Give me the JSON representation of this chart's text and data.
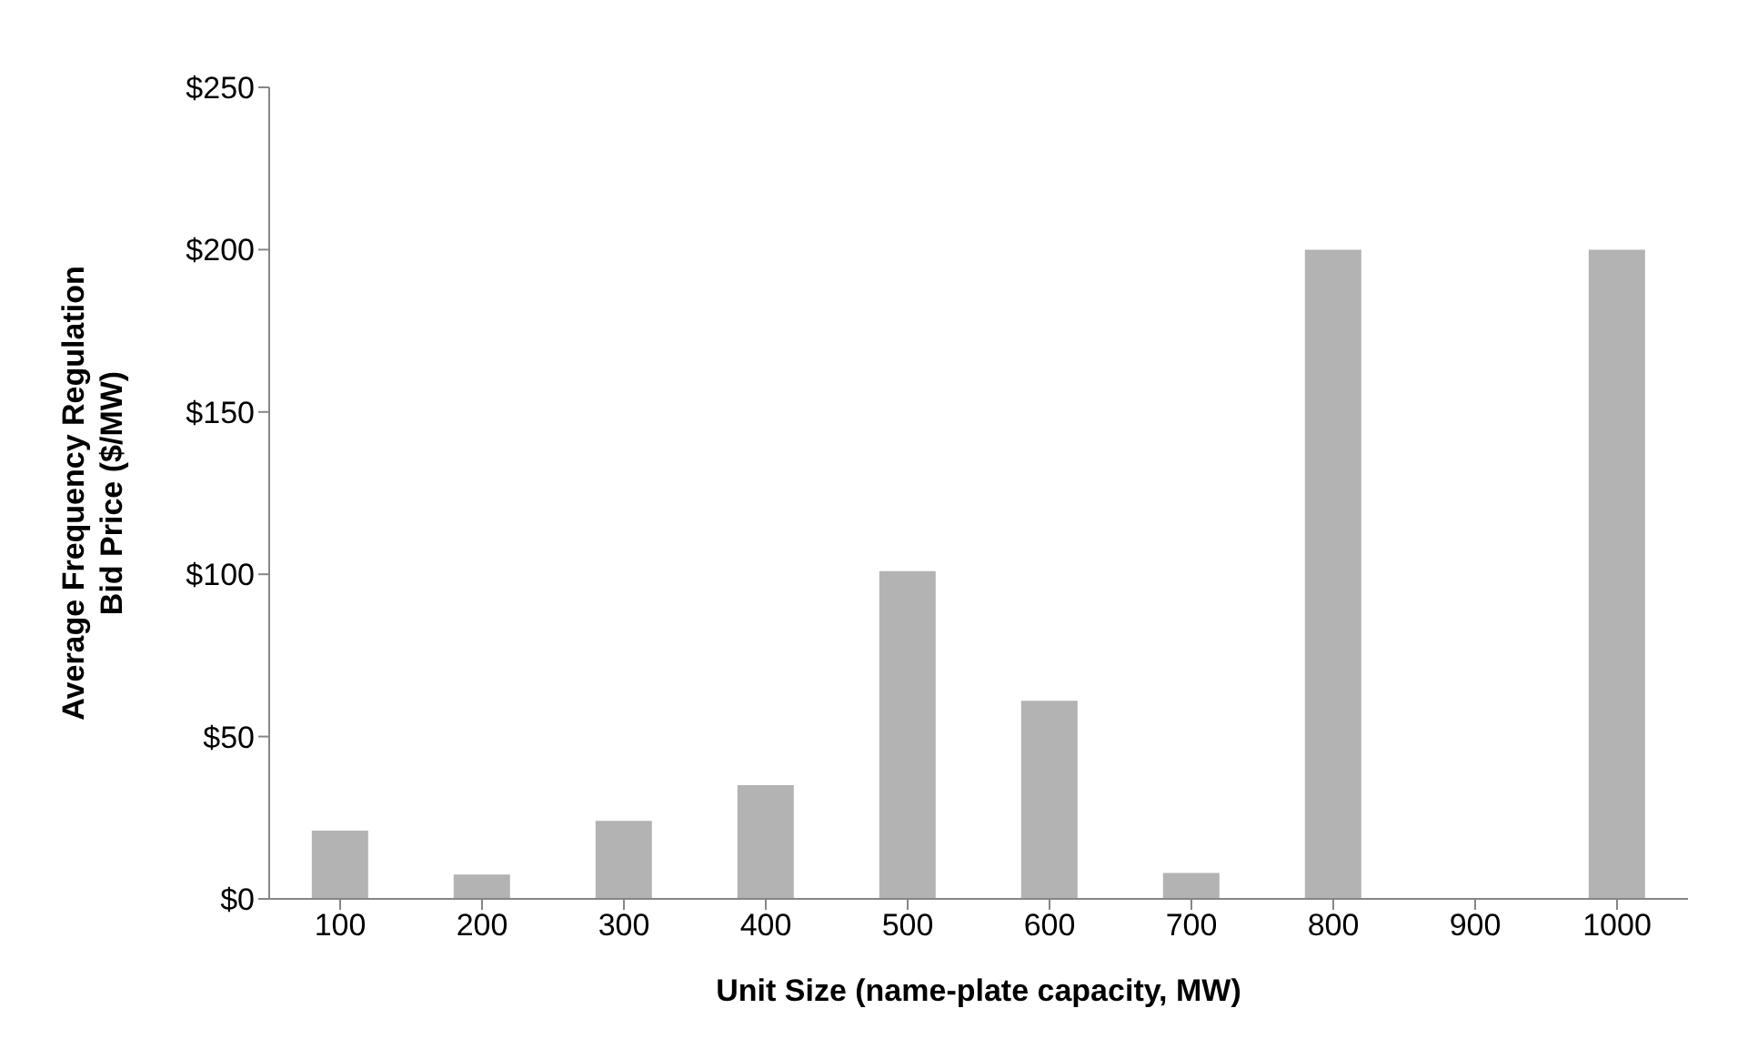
{
  "chart_data": {
    "type": "bar",
    "xlabel": "Unit Size (name-plate capacity, MW)",
    "ylabel": "Average Frequency Regulation\nBid Price ($/MW)",
    "categories": [
      "100",
      "200",
      "300",
      "400",
      "500",
      "600",
      "700",
      "800",
      "900",
      "1000"
    ],
    "values": [
      21,
      7.5,
      24,
      35,
      101,
      61,
      8,
      200,
      0,
      200
    ],
    "color": "#b3b3b3",
    "ylim": [
      0,
      250
    ],
    "yticks": [
      {
        "value": 0,
        "label": "$0"
      },
      {
        "value": 50,
        "label": "$50"
      },
      {
        "value": 100,
        "label": "$100"
      },
      {
        "value": 150,
        "label": "$150"
      },
      {
        "value": 200,
        "label": "$200"
      },
      {
        "value": 250,
        "label": "$250"
      }
    ],
    "grid": false,
    "legend": false
  }
}
